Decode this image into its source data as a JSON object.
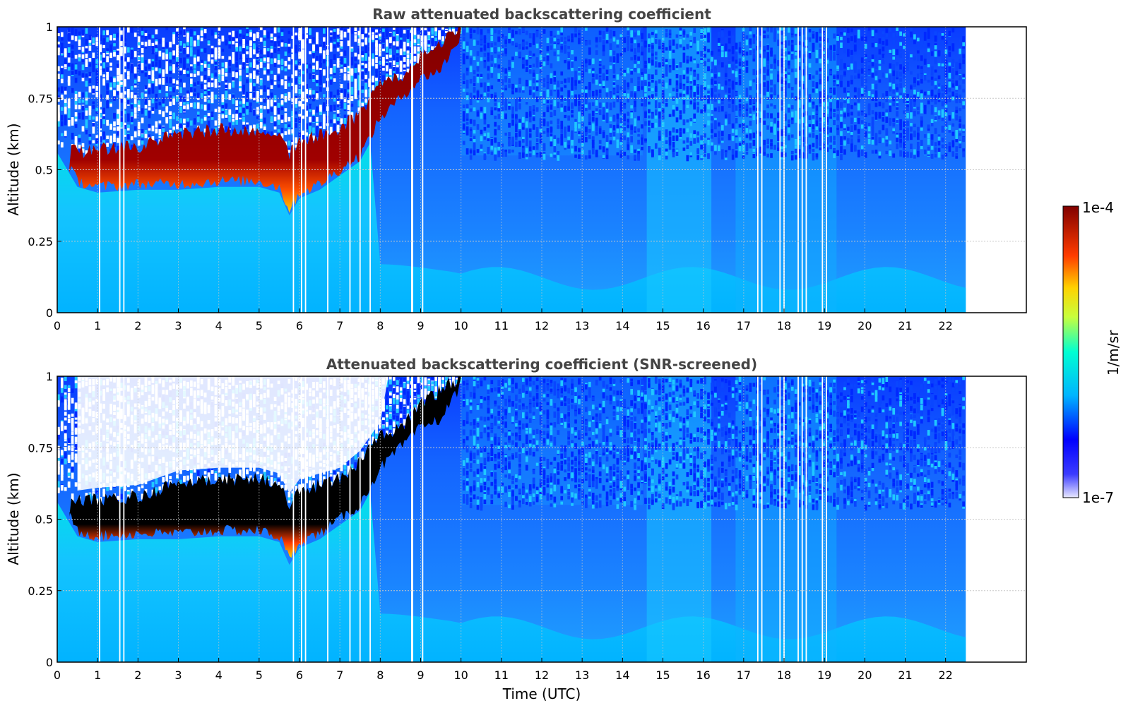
{
  "chart_data": [
    {
      "type": "heatmap",
      "title": "Raw attenuated backscattering coefficient",
      "xlabel": "",
      "ylabel": "Altitude (km)",
      "xlim": [
        0,
        24
      ],
      "ylim": [
        0,
        1
      ],
      "x_ticks": [
        "0",
        "1",
        "2",
        "3",
        "4",
        "5",
        "6",
        "7",
        "8",
        "9",
        "10",
        "11",
        "12",
        "13",
        "14",
        "15",
        "16",
        "17",
        "18",
        "19",
        "20",
        "21",
        "22"
      ],
      "y_ticks": [
        "0",
        "0.25",
        "0.5",
        "0.75",
        "1"
      ],
      "data_time_range": [
        0,
        22.5
      ],
      "grid": true,
      "colormap": "jet",
      "color_scale": "log",
      "cloud_layer_base_km": [
        {
          "t": 0.0,
          "alt": 0.58
        },
        {
          "t": 0.5,
          "alt": 0.46
        },
        {
          "t": 1.0,
          "alt": 0.44
        },
        {
          "t": 2.0,
          "alt": 0.45
        },
        {
          "t": 3.0,
          "alt": 0.45
        },
        {
          "t": 4.0,
          "alt": 0.46
        },
        {
          "t": 5.0,
          "alt": 0.46
        },
        {
          "t": 5.5,
          "alt": 0.44
        },
        {
          "t": 5.75,
          "alt": 0.36
        },
        {
          "t": 6.0,
          "alt": 0.42
        },
        {
          "t": 6.5,
          "alt": 0.45
        },
        {
          "t": 7.0,
          "alt": 0.5
        },
        {
          "t": 7.5,
          "alt": 0.55
        },
        {
          "t": 8.0,
          "alt": 0.68
        },
        {
          "t": 8.5,
          "alt": 0.75
        },
        {
          "t": 9.0,
          "alt": 0.82
        },
        {
          "t": 9.5,
          "alt": 0.85
        },
        {
          "t": 10.0,
          "alt": 0.97
        }
      ],
      "cloud_layer_top_km": [
        {
          "t": 0.0,
          "alt": 0.6
        },
        {
          "t": 0.5,
          "alt": 0.56
        },
        {
          "t": 1.0,
          "alt": 0.57
        },
        {
          "t": 2.0,
          "alt": 0.58
        },
        {
          "t": 3.0,
          "alt": 0.63
        },
        {
          "t": 4.0,
          "alt": 0.64
        },
        {
          "t": 5.0,
          "alt": 0.64
        },
        {
          "t": 5.5,
          "alt": 0.62
        },
        {
          "t": 5.75,
          "alt": 0.55
        },
        {
          "t": 6.0,
          "alt": 0.6
        },
        {
          "t": 6.5,
          "alt": 0.62
        },
        {
          "t": 7.0,
          "alt": 0.64
        },
        {
          "t": 7.5,
          "alt": 0.7
        },
        {
          "t": 8.0,
          "alt": 0.8
        },
        {
          "t": 8.5,
          "alt": 0.82
        },
        {
          "t": 9.0,
          "alt": 0.9
        },
        {
          "t": 9.5,
          "alt": 0.95
        },
        {
          "t": 10.0,
          "alt": 1.0
        }
      ]
    },
    {
      "type": "heatmap",
      "title": "Attenuated backscattering coefficient (SNR-screened)",
      "xlabel": "Time (UTC)",
      "ylabel": "Altitude (km)",
      "xlim": [
        0,
        24
      ],
      "ylim": [
        0,
        1
      ],
      "x_ticks": [
        "0",
        "1",
        "2",
        "3",
        "4",
        "5",
        "6",
        "7",
        "8",
        "9",
        "10",
        "11",
        "12",
        "13",
        "14",
        "15",
        "16",
        "17",
        "18",
        "19",
        "20",
        "21",
        "22"
      ],
      "y_ticks": [
        "0",
        "0.25",
        "0.5",
        "0.75",
        "1"
      ],
      "data_time_range": [
        0,
        22.5
      ],
      "grid": true,
      "colormap": "jet",
      "color_scale": "log",
      "saturated_color": "#000000"
    }
  ],
  "colorbar": {
    "label": "1/m/sr",
    "max_label": "1e-4",
    "min_label": "1e-7",
    "stops": [
      "#e8e8ff",
      "#0000ff",
      "#00b4ff",
      "#00ffd2",
      "#c8ff3c",
      "#ffd200",
      "#ff3c00",
      "#800000"
    ]
  },
  "colors": {
    "background_blue": "#1e6eff",
    "aerosol_cyan": "#00c8ff",
    "cloud_red": "#8b0000",
    "grid": "#c8c8c8"
  }
}
